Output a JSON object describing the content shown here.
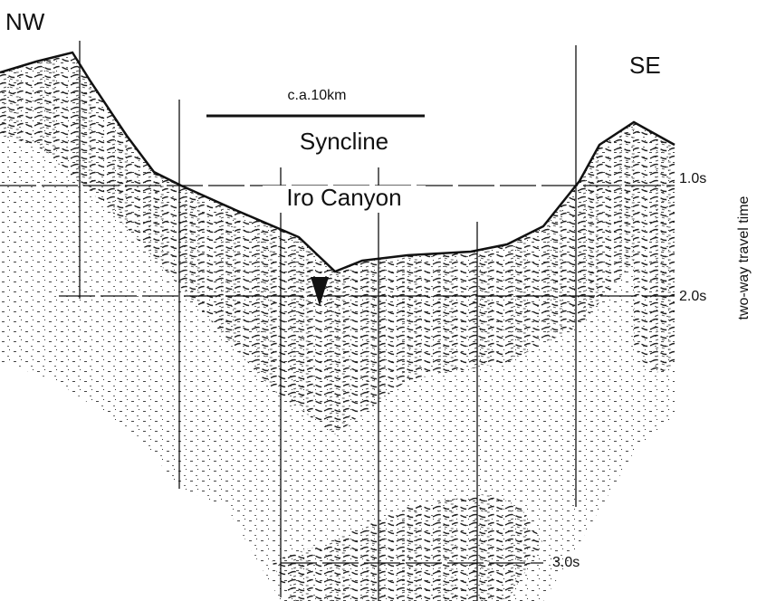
{
  "labels": {
    "left_direction": "NW",
    "right_direction": "SE",
    "scale": "c.a.10km",
    "feature_1": "Syncline",
    "feature_2": "Iro Canyon"
  },
  "time_axis": {
    "title": "two-way travel time",
    "ticks": [
      "1.0s",
      "2.0s",
      "3.0s"
    ]
  }
}
